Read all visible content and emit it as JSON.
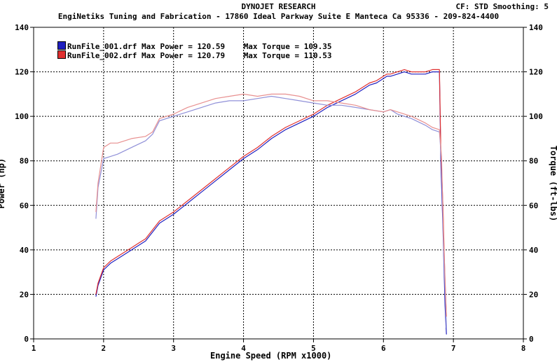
{
  "header": {
    "title": "DYNOJET RESEARCH",
    "subtitle": "EngiNetiks Tuning and Fabrication - 17860 Ideal Parkway Suite E Manteca Ca 95336 - 209-824-4400",
    "cf_info": "CF: STD  Smoothing: 5"
  },
  "legend": [
    {
      "name": "RunFile_001.drf",
      "power_label": "Max Power = 120.59",
      "torque_label": "Max Torque = 109.35",
      "color": "#2020c0"
    },
    {
      "name": "RunFile_002.drf",
      "power_label": "Max Power = 120.79",
      "torque_label": "Max Torque = 110.53",
      "color": "#e03030"
    }
  ],
  "chart_data": {
    "type": "line",
    "title": "DYNOJET RESEARCH",
    "xlabel": "Engine Speed (RPM x1000)",
    "ylabel_left": "Power (hp)",
    "ylabel_right": "Torque (ft-lbs)",
    "xlim": [
      1,
      8
    ],
    "ylim": [
      0,
      140
    ],
    "x_ticks": [
      "1",
      "2",
      "3",
      "4",
      "5",
      "6",
      "7",
      "8"
    ],
    "y_ticks": [
      "0",
      "20",
      "40",
      "60",
      "80",
      "100",
      "120",
      "140"
    ],
    "grid": true,
    "legend_position": "top-left",
    "series": [
      {
        "name": "RunFile_001.drf",
        "measure": "power",
        "color": "#2020c0",
        "x": [
          1.89,
          1.92,
          2.0,
          2.1,
          2.2,
          2.3,
          2.4,
          2.5,
          2.6,
          2.8,
          3.0,
          3.2,
          3.4,
          3.6,
          3.8,
          4.0,
          4.2,
          4.4,
          4.6,
          4.8,
          5.0,
          5.2,
          5.4,
          5.6,
          5.8,
          5.9,
          6.0,
          6.05,
          6.1,
          6.2,
          6.3,
          6.4,
          6.5,
          6.6,
          6.7,
          6.78,
          6.8,
          6.82,
          6.85,
          6.88,
          6.9
        ],
        "y": [
          19,
          24,
          31,
          34,
          36,
          38,
          40,
          42,
          44,
          52,
          56,
          61,
          66,
          71,
          76,
          81,
          85,
          90,
          94,
          97,
          100,
          104,
          107,
          110,
          114,
          115,
          117,
          118,
          118,
          119,
          120,
          119,
          119,
          119,
          120,
          120,
          120,
          80,
          50,
          15,
          2
        ]
      },
      {
        "name": "RunFile_002.drf",
        "measure": "power",
        "color": "#e03030",
        "x": [
          1.89,
          1.92,
          2.0,
          2.1,
          2.2,
          2.3,
          2.4,
          2.5,
          2.6,
          2.8,
          3.0,
          3.2,
          3.4,
          3.6,
          3.8,
          4.0,
          4.2,
          4.4,
          4.6,
          4.8,
          5.0,
          5.2,
          5.4,
          5.6,
          5.8,
          5.9,
          6.0,
          6.05,
          6.1,
          6.2,
          6.3,
          6.4,
          6.5,
          6.6,
          6.7,
          6.78,
          6.8,
          6.82,
          6.85,
          6.88,
          6.9
        ],
        "y": [
          20,
          25,
          32,
          35,
          37,
          39,
          41,
          43,
          45,
          53,
          57,
          62,
          67,
          72,
          77,
          82,
          86,
          91,
          95,
          98,
          101,
          105,
          108,
          111,
          115,
          116,
          118,
          119,
          119,
          120,
          121,
          120,
          120,
          120,
          121,
          121,
          121,
          85,
          60,
          25,
          10
        ]
      },
      {
        "name": "RunFile_001.drf",
        "measure": "torque",
        "color": "#9090d8",
        "x": [
          1.89,
          1.92,
          2.0,
          2.1,
          2.2,
          2.4,
          2.6,
          2.7,
          2.8,
          3.0,
          3.2,
          3.4,
          3.6,
          3.8,
          4.0,
          4.2,
          4.4,
          4.6,
          4.8,
          5.0,
          5.2,
          5.4,
          5.6,
          5.8,
          6.0,
          6.1,
          6.2,
          6.4,
          6.6,
          6.7,
          6.8,
          6.83,
          6.86,
          6.9
        ],
        "y": [
          54,
          68,
          81,
          82,
          83,
          86,
          89,
          92,
          98,
          100,
          102,
          104,
          106,
          107,
          107,
          108,
          109,
          108,
          107,
          106,
          105,
          105,
          104,
          103,
          102,
          103,
          101,
          99,
          96,
          94,
          93,
          80,
          40,
          5
        ]
      },
      {
        "name": "RunFile_002.drf",
        "measure": "torque",
        "color": "#e89090",
        "x": [
          1.89,
          1.92,
          2.0,
          2.1,
          2.2,
          2.4,
          2.6,
          2.7,
          2.8,
          3.0,
          3.2,
          3.4,
          3.6,
          3.8,
          4.0,
          4.2,
          4.4,
          4.6,
          4.8,
          5.0,
          5.2,
          5.4,
          5.6,
          5.8,
          6.0,
          6.1,
          6.2,
          6.4,
          6.6,
          6.7,
          6.8,
          6.83,
          6.86,
          6.9
        ],
        "y": [
          57,
          70,
          86,
          88,
          88,
          90,
          91,
          93,
          99,
          101,
          104,
          106,
          108,
          109,
          110,
          109,
          110,
          110,
          109,
          107,
          107,
          106,
          105,
          103,
          102,
          103,
          102,
          100,
          97,
          95,
          94,
          82,
          45,
          10
        ]
      }
    ]
  }
}
